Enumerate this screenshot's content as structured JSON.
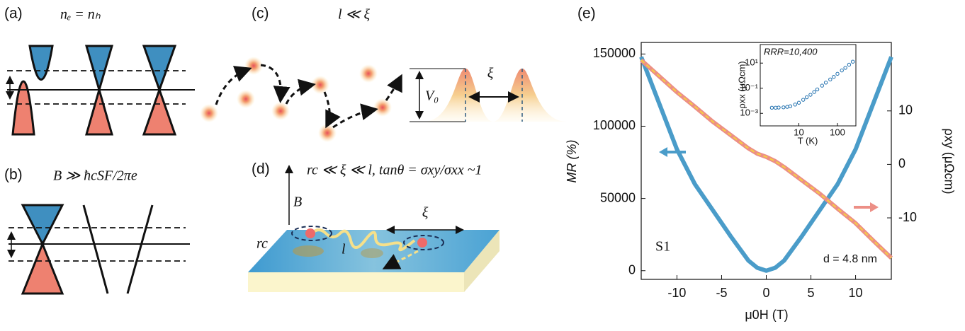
{
  "panels": {
    "a": {
      "label": "(a)",
      "condition": "nₑ = nₕ"
    },
    "b": {
      "label": "(b)",
      "condition": "B ≫ ħcSF/2πe"
    },
    "c": {
      "label": "(c)",
      "condition": "l ≪ ξ",
      "barrier": "V₀",
      "spacing": "ξ"
    },
    "d": {
      "label": "(d)",
      "condition": "rc ≪ ξ ≪ l, tanθ = σxy/σxx ~1",
      "field": "B",
      "radius": "rc",
      "path": "l",
      "spacing": "ξ"
    }
  },
  "chart_data": [
    {
      "type": "line",
      "label": "(e)",
      "x_label": "μ0H (T)",
      "y_label": "MR (%)",
      "y2_label": "ρxy (μΩcm)",
      "annotations": [
        "S1",
        "d = 4.8 nm"
      ],
      "x": [
        -14,
        -12,
        -10,
        -8,
        -6,
        -4,
        -2,
        -1,
        0,
        1,
        2,
        4,
        6,
        8,
        10,
        12,
        14
      ],
      "xlim": [
        -14,
        14
      ],
      "xticks": [
        -10,
        -5,
        0,
        5,
        10
      ],
      "ylim": [
        -6000,
        158000
      ],
      "yticks": [
        0,
        50000,
        100000,
        150000
      ],
      "y2lim": [
        -21.5,
        22.8
      ],
      "y2ticks": [
        -10,
        0,
        10
      ],
      "series": [
        {
          "color": "#4a9cc9",
          "values": [
            148000,
            116000,
            84000,
            60000,
            42000,
            24000,
            7000,
            2000,
            0,
            2000,
            7000,
            24000,
            42000,
            60000,
            84000,
            116000,
            148000
          ]
        },
        {
          "color": "#ec8f86",
          "axis": "y2",
          "values": [
            19.5,
            16.5,
            13.5,
            10.8,
            8,
            5.5,
            3,
            2,
            1.4,
            0.6,
            -0.5,
            -3,
            -5.5,
            -8.3,
            -11,
            -14.3,
            -17.5
          ]
        }
      ]
    },
    {
      "type": "scatter",
      "text_label": "RRR=10,400",
      "x_label": "T (K)",
      "y_label": "ρxx (μΩcm)",
      "log_x": true,
      "log_y": true,
      "color": "#1f6fae",
      "xlim": [
        1,
        300
      ],
      "xticks": [
        10,
        100
      ],
      "ylim": [
        0.0001,
        300
      ],
      "yticks": [
        {
          "value": 0.001,
          "label": "10⁻³"
        },
        {
          "value": 0.1,
          "label": "10⁻¹"
        },
        {
          "value": 10,
          "label": "10¹"
        }
      ],
      "x": [
        2,
        2.5,
        3,
        4,
        5,
        6,
        8,
        10,
        13,
        16,
        20,
        25,
        30,
        40,
        50,
        65,
        80,
        100,
        130,
        160,
        200,
        250
      ],
      "values": [
        0.0028,
        0.0028,
        0.0029,
        0.003,
        0.0033,
        0.0037,
        0.005,
        0.007,
        0.012,
        0.019,
        0.03,
        0.05,
        0.08,
        0.16,
        0.28,
        0.5,
        0.8,
        1.4,
        2.6,
        4.2,
        7.5,
        13
      ]
    }
  ]
}
